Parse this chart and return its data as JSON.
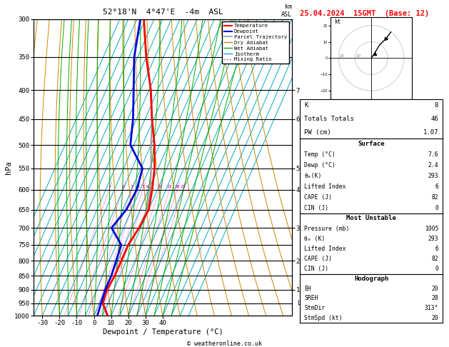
{
  "title_left": "52°18'N  4°47'E  -4m  ASL",
  "title_right": "25.04.2024  15GMT  (Base: 12)",
  "xlabel": "Dewpoint / Temperature (°C)",
  "pressure_levels": [
    300,
    350,
    400,
    450,
    500,
    550,
    600,
    650,
    700,
    750,
    800,
    850,
    900,
    950,
    1000
  ],
  "pmin": 300,
  "pmax": 1000,
  "T_min": -35,
  "T_max": 40,
  "skew_deg": 45,
  "temp_color": "#ff0000",
  "dewp_color": "#0000dd",
  "parcel_color": "#999999",
  "dry_adiabat_color": "#cc8800",
  "wet_adiabat_color": "#00aa00",
  "isotherm_color": "#00aacc",
  "mixing_ratio_color": "#cc0099",
  "temp_profile_P": [
    1000,
    950,
    900,
    850,
    800,
    750,
    700,
    650,
    600,
    550,
    500,
    450,
    400,
    350,
    300
  ],
  "temp_profile_T": [
    8,
    2,
    1,
    2,
    2,
    2,
    4,
    5,
    2,
    -2,
    -8,
    -16,
    -24,
    -35,
    -46
  ],
  "dewp_profile_P": [
    1000,
    950,
    900,
    850,
    800,
    750,
    700,
    650,
    600,
    550,
    500,
    450,
    400,
    350,
    300
  ],
  "dewp_profile_T": [
    2,
    1,
    0,
    0,
    -1,
    -2,
    -12,
    -8,
    -7,
    -9,
    -22,
    -27,
    -34,
    -42,
    -48
  ],
  "parcel_profile_P": [
    1000,
    950,
    900,
    850,
    800,
    750,
    700,
    650,
    600,
    550,
    500,
    450,
    400,
    350,
    300
  ],
  "parcel_profile_T": [
    8,
    1.5,
    1,
    2,
    2,
    2,
    4,
    4,
    1,
    -4,
    -10,
    -16,
    -24,
    -35,
    -46
  ],
  "mixing_ratios": [
    1,
    2,
    3,
    4,
    5,
    6,
    10,
    15,
    20,
    25
  ],
  "km_labels": [
    7,
    6,
    5,
    4,
    3,
    2,
    1
  ],
  "km_pressures": [
    400,
    450,
    550,
    600,
    700,
    800,
    900
  ],
  "lcl_pressure": 950,
  "K_val": "8",
  "TT_val": "46",
  "PW_val": "1.07",
  "surf_temp": "7.6",
  "surf_dewp": "2.4",
  "surf_theta_e": "293",
  "surf_li": "6",
  "surf_cape": "82",
  "surf_cin": "0",
  "mu_press": "1005",
  "mu_theta_e": "293",
  "mu_li": "6",
  "mu_cape": "82",
  "mu_cin": "0",
  "hodo_eh": "20",
  "hodo_sreh": "28",
  "hodo_stmdir": "313°",
  "hodo_stmspd": "20",
  "copyright": "© weatheronline.co.uk",
  "legend_labels": [
    "Temperature",
    "Dewpoint",
    "Parcel Trajectory",
    "Dry Adiabat",
    "Wet Adiabat",
    "Isotherm",
    "Mixing Ratio"
  ]
}
